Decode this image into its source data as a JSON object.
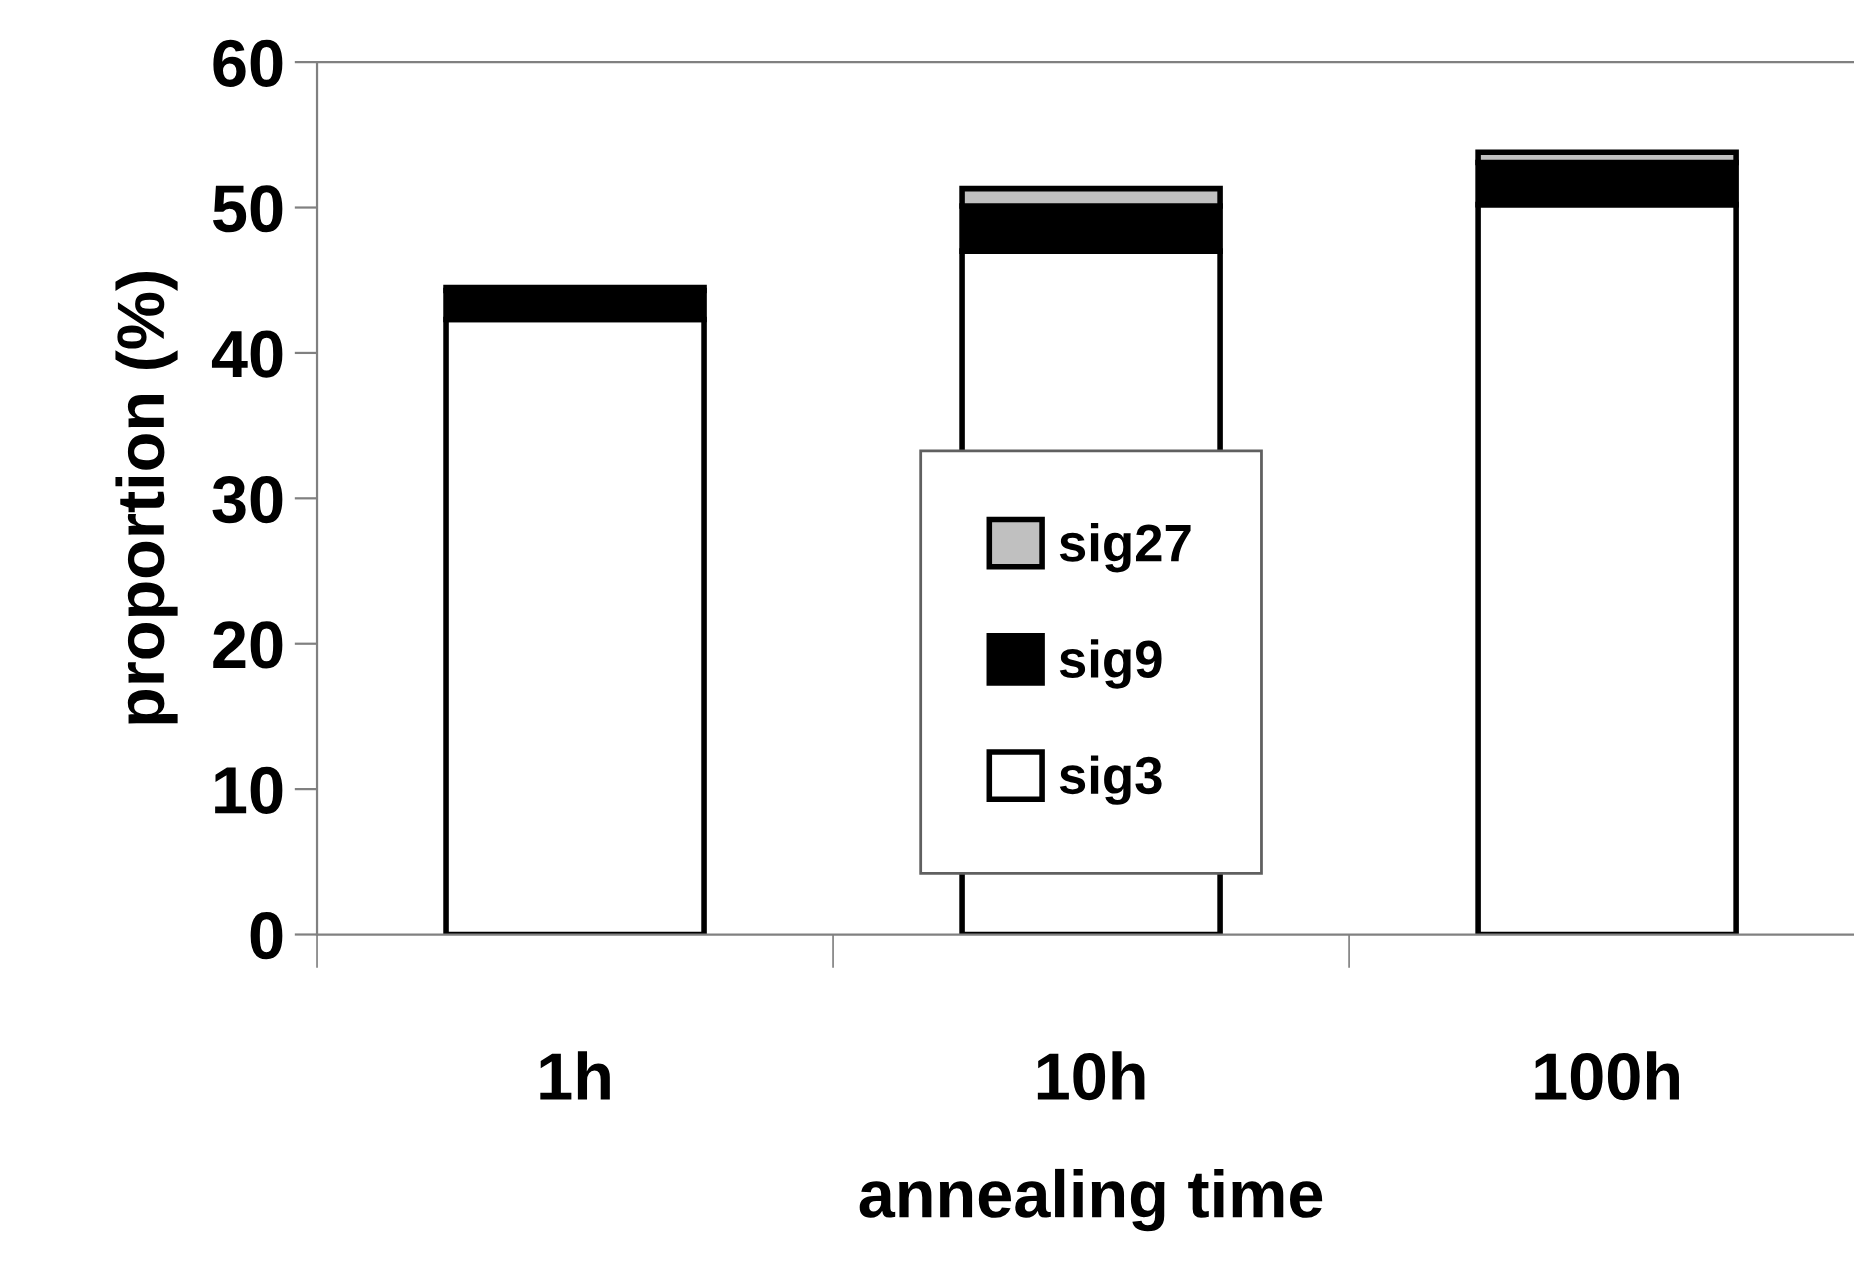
{
  "chart_data": {
    "type": "bar",
    "stacked": true,
    "xlabel": "annealing time",
    "ylabel": "proportion (%)",
    "categories": [
      "1h",
      "10h",
      "100h"
    ],
    "series": [
      {
        "name": "sig3",
        "color": "#ffffff",
        "values": [
          42.3,
          47.0,
          50.2
        ]
      },
      {
        "name": "sig9",
        "color": "#000000",
        "values": [
          2.0,
          3.1,
          2.9
        ]
      },
      {
        "name": "sig27",
        "color": "#c0c0c0",
        "values": [
          0.2,
          1.2,
          0.7
        ]
      }
    ],
    "ylim": [
      0,
      60
    ],
    "yticks": [
      0,
      10,
      20,
      30,
      40,
      50,
      60
    ],
    "grid": false,
    "legend": "bottom"
  }
}
